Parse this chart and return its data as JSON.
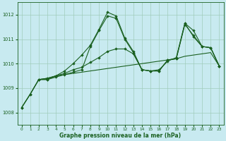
{
  "bg_color": "#c8eaf0",
  "grid_color": "#a0ccbb",
  "line_color": "#1a6020",
  "xlabel": "Graphe pression niveau de la mer (hPa)",
  "xlabel_color": "#1a6020",
  "ylim": [
    1007.5,
    1012.5
  ],
  "xlim": [
    -0.5,
    23.5
  ],
  "yticks": [
    1008,
    1009,
    1010,
    1011,
    1012
  ],
  "xticks": [
    0,
    1,
    2,
    3,
    4,
    5,
    6,
    7,
    8,
    9,
    10,
    11,
    12,
    13,
    14,
    15,
    16,
    17,
    18,
    19,
    20,
    21,
    22,
    23
  ],
  "series": [
    {
      "x": [
        0,
        1,
        2,
        3,
        4,
        5,
        6,
        7,
        8,
        9,
        10,
        11,
        12,
        13,
        14,
        15,
        16,
        17,
        18,
        19,
        20,
        21,
        22,
        23
      ],
      "y": [
        1008.2,
        1008.75,
        1009.35,
        1009.4,
        1009.5,
        1009.55,
        1009.6,
        1009.65,
        1009.7,
        1009.75,
        1009.8,
        1009.85,
        1009.9,
        1009.95,
        1010.0,
        1010.05,
        1010.1,
        1010.15,
        1010.2,
        1010.3,
        1010.35,
        1010.4,
        1010.45,
        1009.9
      ],
      "marker": false,
      "lw": 0.8
    },
    {
      "x": [
        0,
        1,
        2,
        3,
        4,
        5,
        6,
        7,
        8,
        9,
        10,
        11,
        12,
        13,
        14,
        15,
        16,
        17,
        18,
        19,
        20,
        21,
        22,
        23
      ],
      "y": [
        1008.2,
        1008.75,
        1009.35,
        1009.4,
        1009.5,
        1009.7,
        1010.0,
        1010.35,
        1010.75,
        1011.4,
        1012.1,
        1011.95,
        1011.05,
        1010.5,
        1009.75,
        1009.7,
        1009.7,
        1010.15,
        1010.2,
        1011.65,
        1011.35,
        1010.7,
        1010.65,
        1009.9
      ],
      "marker": true,
      "lw": 0.8
    },
    {
      "x": [
        0,
        1,
        2,
        3,
        4,
        5,
        6,
        7,
        8,
        9,
        10,
        11,
        12,
        13,
        14,
        15,
        16,
        17,
        18,
        19,
        20,
        21,
        22,
        23
      ],
      "y": [
        1008.2,
        1008.75,
        1009.35,
        1009.35,
        1009.45,
        1009.55,
        1009.65,
        1009.75,
        1010.7,
        1011.35,
        1011.95,
        1011.85,
        1011.0,
        1010.45,
        1009.75,
        1009.7,
        1009.7,
        1010.15,
        1010.2,
        1011.6,
        1011.15,
        1010.7,
        1010.65,
        1009.9
      ],
      "marker": true,
      "lw": 0.8
    },
    {
      "x": [
        2,
        3,
        4,
        5,
        6,
        7,
        8,
        9,
        10,
        11,
        12,
        13,
        14,
        15,
        16,
        17,
        18,
        19,
        20,
        21,
        22,
        23
      ],
      "y": [
        1009.35,
        1009.35,
        1009.5,
        1009.6,
        1009.75,
        1009.85,
        1010.05,
        1010.25,
        1010.5,
        1010.6,
        1010.6,
        1010.4,
        1009.75,
        1009.7,
        1009.75,
        1010.1,
        1010.25,
        1011.65,
        1011.1,
        1010.7,
        1010.65,
        1009.9
      ],
      "marker": true,
      "lw": 0.8
    }
  ]
}
